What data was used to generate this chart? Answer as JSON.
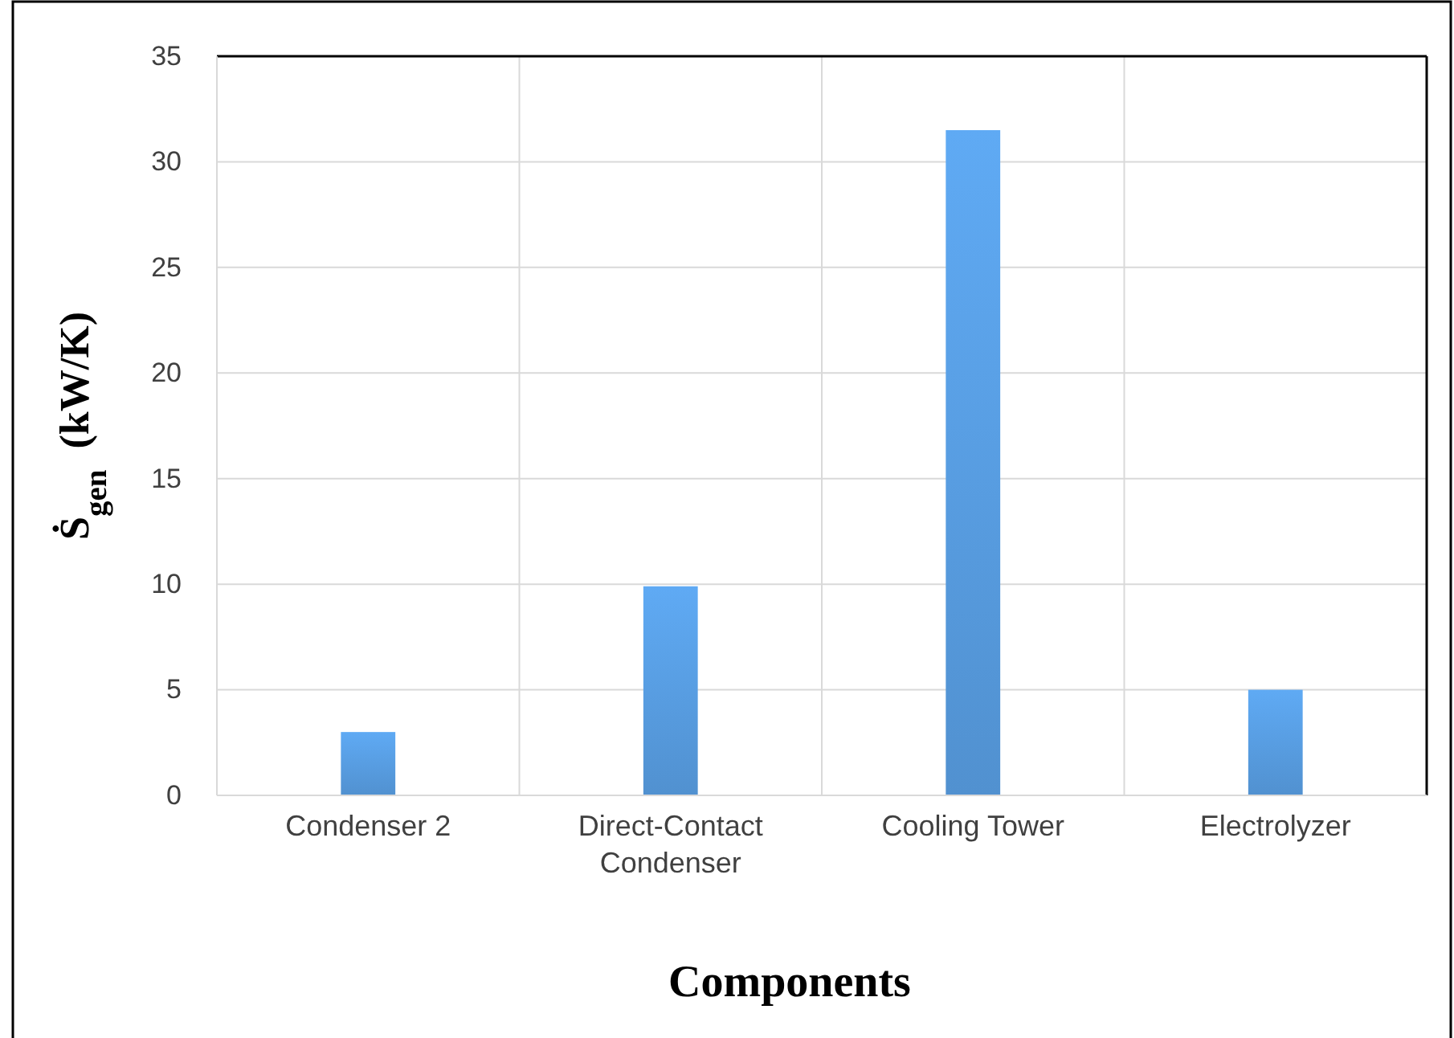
{
  "chart_data": {
    "type": "bar",
    "xlabel": "Components",
    "ylabel": "Ṡ$_{gen}$  (kW/K)",
    "categories": [
      "Condenser 2",
      "Direct-Contact Condenser",
      "Cooling Tower",
      "Electrolyzer"
    ],
    "values": [
      3.0,
      9.9,
      31.5,
      5.0
    ],
    "color": "#5599db",
    "ylim": [
      0,
      35
    ],
    "yticks": [
      0,
      5,
      10,
      15,
      20,
      25,
      30,
      35
    ],
    "grid": true
  }
}
